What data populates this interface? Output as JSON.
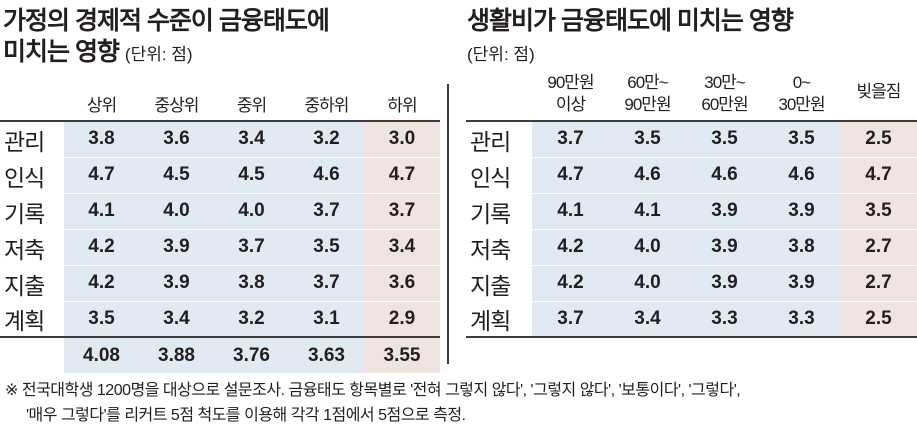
{
  "left": {
    "title_line1": "가정의 경제적 수준이 금융태도에",
    "title_line2": "미치는 영향",
    "unit": "(단위: 점)",
    "columns": [
      "상위",
      "중상위",
      "중위",
      "중하위",
      "하위"
    ],
    "rows": [
      {
        "label": "관리",
        "values": [
          "3.8",
          "3.6",
          "3.4",
          "3.2",
          "3.0"
        ]
      },
      {
        "label": "인식",
        "values": [
          "4.7",
          "4.5",
          "4.5",
          "4.6",
          "4.7"
        ]
      },
      {
        "label": "기록",
        "values": [
          "4.1",
          "4.0",
          "4.0",
          "3.7",
          "3.7"
        ]
      },
      {
        "label": "저축",
        "values": [
          "4.2",
          "3.9",
          "3.7",
          "3.5",
          "3.4"
        ]
      },
      {
        "label": "지출",
        "values": [
          "4.2",
          "3.9",
          "3.8",
          "3.7",
          "3.6"
        ]
      },
      {
        "label": "계획",
        "values": [
          "3.5",
          "3.4",
          "3.2",
          "3.1",
          "2.9"
        ]
      }
    ],
    "averages": [
      "4.08",
      "3.88",
      "3.76",
      "3.63",
      "3.55"
    ]
  },
  "right": {
    "title": "생활비가 금융태도에 미치는 영향",
    "unit": "(단위: 점)",
    "columns": [
      {
        "line1": "90만원",
        "line2": "이상"
      },
      {
        "line1": "60만~",
        "line2": "90만원"
      },
      {
        "line1": "30만~",
        "line2": "60만원"
      },
      {
        "line1": "0~",
        "line2": "30만원"
      },
      {
        "line1": "빚을짐",
        "line2": ""
      }
    ],
    "rows": [
      {
        "label": "관리",
        "values": [
          "3.7",
          "3.5",
          "3.5",
          "3.5",
          "2.5"
        ]
      },
      {
        "label": "인식",
        "values": [
          "4.7",
          "4.6",
          "4.6",
          "4.6",
          "4.7"
        ]
      },
      {
        "label": "기록",
        "values": [
          "4.1",
          "4.1",
          "3.9",
          "3.9",
          "3.5"
        ]
      },
      {
        "label": "저축",
        "values": [
          "4.2",
          "4.0",
          "3.9",
          "3.8",
          "2.7"
        ]
      },
      {
        "label": "지출",
        "values": [
          "4.2",
          "4.0",
          "3.9",
          "3.9",
          "2.7"
        ]
      },
      {
        "label": "계획",
        "values": [
          "3.7",
          "3.4",
          "3.3",
          "3.3",
          "2.5"
        ]
      }
    ]
  },
  "footnote": {
    "line1": "※ 전국대학생 1200명을 대상으로 설문조사. 금융태도 항목별로 '전혀 그렇지 않다', '그렇지 않다', '보통이다', '그렇다',",
    "line2": "'매우 그렇다'를 리커트 5점 척도를 이용해 각각 1점에서 5점으로 측정."
  },
  "colors": {
    "cell_blue": "#e1e9f2",
    "cell_pink": "#f0e4e2",
    "rule": "#3d3a3b",
    "text": "#231f20"
  }
}
